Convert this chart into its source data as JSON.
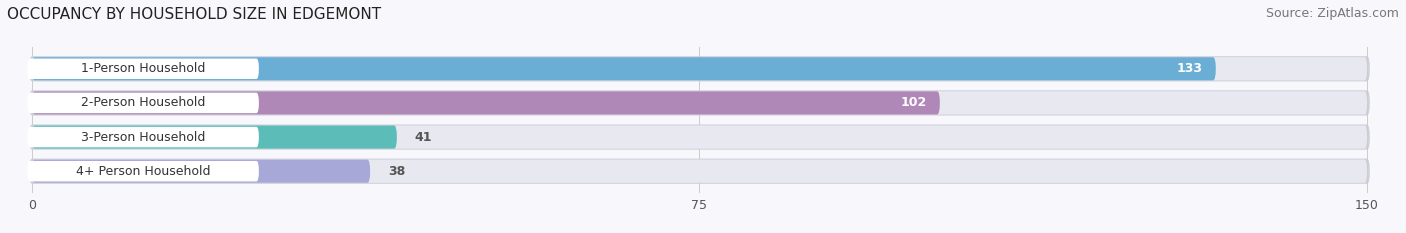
{
  "title": "OCCUPANCY BY HOUSEHOLD SIZE IN EDGEMONT",
  "source": "Source: ZipAtlas.com",
  "categories": [
    "1-Person Household",
    "2-Person Household",
    "3-Person Household",
    "4+ Person Household"
  ],
  "values": [
    133,
    102,
    41,
    38
  ],
  "bar_colors": [
    "#6aaed6",
    "#b088b8",
    "#5bbcb8",
    "#a8a8d8"
  ],
  "bar_bg_color": "#e8e8f0",
  "bar_border_color": "#d0d0e0",
  "xlim": [
    0,
    150
  ],
  "xticks": [
    0,
    75,
    150
  ],
  "title_fontsize": 11,
  "source_fontsize": 9,
  "label_fontsize": 9,
  "value_fontsize": 9,
  "background_color": "#f8f8fc"
}
